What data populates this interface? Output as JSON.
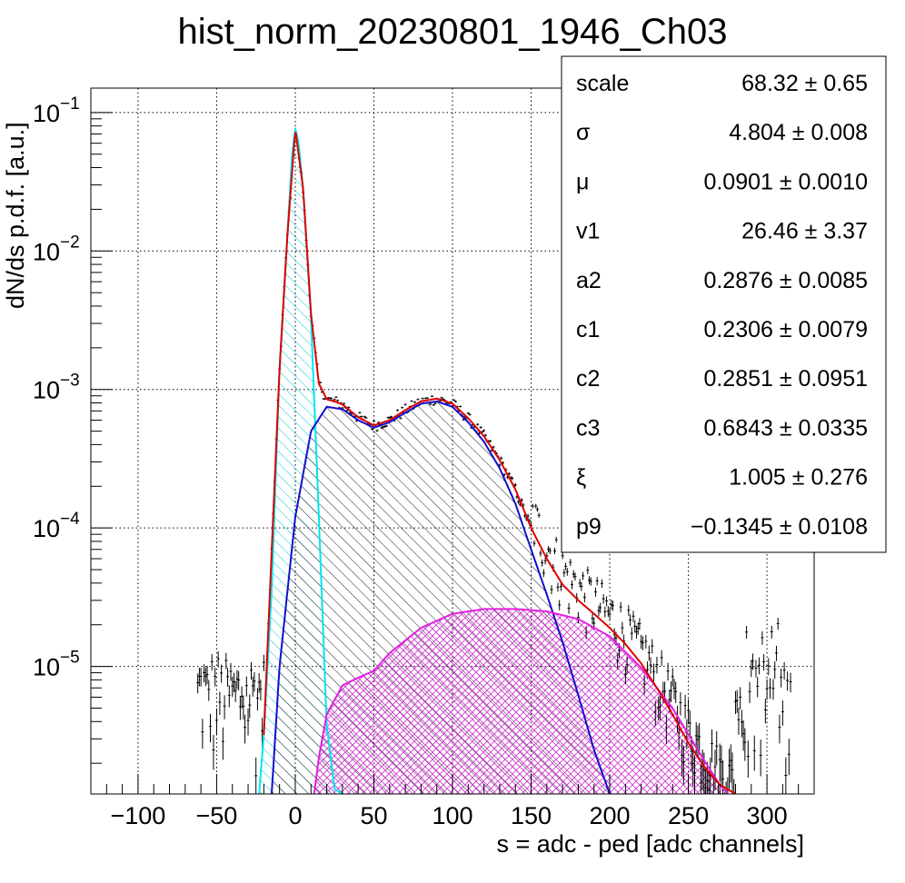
{
  "chart_data": {
    "type": "histogram",
    "title": "hist_norm_20230801_1946_Ch03",
    "xlabel": "s = adc - ped [adc channels]",
    "ylabel": "dN/ds p.d.f. [a.u.]",
    "y_scale": "log",
    "xlim": [
      -130,
      330
    ],
    "ylim": [
      1.2e-06,
      0.15
    ],
    "grid": true,
    "x_ticks": [
      -100,
      -50,
      0,
      50,
      100,
      150,
      200,
      250,
      300
    ],
    "x_tick_labels": [
      "−100",
      "−50",
      "0",
      "50",
      "100",
      "150",
      "200",
      "250",
      "300"
    ],
    "y_ticks": [
      {
        "value": 0.1,
        "base": "10",
        "exp": "−1"
      },
      {
        "value": 0.01,
        "base": "10",
        "exp": "−2"
      },
      {
        "value": 0.001,
        "base": "10",
        "exp": "−3"
      },
      {
        "value": 0.0001,
        "base": "10",
        "exp": "−4"
      },
      {
        "value": 1e-05,
        "base": "10",
        "exp": "−5"
      }
    ],
    "components": [
      {
        "color": "#00e5ee",
        "x": [
          -23,
          -20,
          -15,
          -10,
          -5,
          -2,
          0,
          2,
          5,
          10,
          15,
          20,
          25,
          30
        ],
        "y": [
          1.2e-06,
          3.2e-06,
          3.6e-05,
          0.0014,
          0.013,
          0.05,
          0.076,
          0.062,
          0.028,
          0.0033,
          0.00012,
          3.8e-06,
          1.3e-06,
          1.2e-06
        ]
      },
      {
        "color": "#1010cc",
        "x": [
          -15,
          -10,
          0,
          10,
          20,
          30,
          40,
          50,
          60,
          70,
          80,
          90,
          100,
          110,
          120,
          130,
          140,
          150,
          160,
          170,
          180,
          190,
          200
        ],
        "y": [
          1.2e-06,
          1e-05,
          0.00012,
          0.0005,
          0.00075,
          0.00072,
          0.0006,
          0.00053,
          0.00058,
          0.00068,
          0.00079,
          0.00082,
          0.00075,
          0.00058,
          0.00042,
          0.00027,
          0.00015,
          7e-05,
          3.3e-05,
          1.5e-05,
          6.2e-06,
          2.5e-06,
          1.2e-06
        ]
      },
      {
        "color": "#e020e0",
        "x": [
          12,
          15,
          20,
          30,
          40,
          50,
          60,
          80,
          100,
          120,
          140,
          160,
          180,
          200,
          220,
          240,
          260,
          270,
          275
        ],
        "y": [
          1.2e-06,
          2.2e-06,
          4.5e-06,
          7.3e-06,
          8.3e-06,
          9.3e-06,
          1.25e-05,
          1.9e-05,
          2.4e-05,
          2.6e-05,
          2.6e-05,
          2.5e-05,
          2.2e-05,
          1.65e-05,
          9.8e-06,
          5e-06,
          2.1e-06,
          1.4e-06,
          1.2e-06
        ]
      },
      {
        "color": "#dd0000",
        "x": [
          -20,
          -10,
          -5,
          0,
          5,
          10,
          15,
          18,
          20,
          25,
          30,
          40,
          50,
          60,
          70,
          80,
          90,
          100,
          110,
          120,
          130,
          140,
          150,
          160,
          170,
          180,
          190,
          200,
          210,
          220,
          230,
          240,
          250,
          260,
          270,
          280
        ],
        "y": [
          3.2e-06,
          0.0014,
          0.013,
          0.076,
          0.028,
          0.0035,
          0.0011,
          0.00095,
          0.00085,
          0.00082,
          0.00078,
          0.00063,
          0.00055,
          0.0006,
          0.00071,
          0.00082,
          0.00086,
          0.00079,
          0.00062,
          0.00046,
          0.00031,
          0.00019,
          0.0001,
          6e-05,
          3.9e-05,
          3e-05,
          2.4e-05,
          1.9e-05,
          1.45e-05,
          1.05e-05,
          7e-06,
          4.5e-06,
          2.8e-06,
          1.9e-06,
          1.4e-06,
          1.2e-06
        ]
      }
    ],
    "stats": [
      {
        "name": "scale",
        "value": "68.32 ± 0.65"
      },
      {
        "name": "σ",
        "value": "4.804 ± 0.008"
      },
      {
        "name": "μ",
        "value": "0.0901 ± 0.0010"
      },
      {
        "name": "v1",
        "value": "26.46 ± 3.37"
      },
      {
        "name": "a2",
        "value": "0.2876 ± 0.0085"
      },
      {
        "name": "c1",
        "value": "0.2306 ± 0.0079"
      },
      {
        "name": "c2",
        "value": "0.2851 ± 0.0951"
      },
      {
        "name": "c3",
        "value": "0.6843 ± 0.0335"
      },
      {
        "name": "ξ",
        "value": "1.005 ± 0.276"
      },
      {
        "name": "p9",
        "value": "−0.1345 ± 0.0108"
      }
    ]
  }
}
